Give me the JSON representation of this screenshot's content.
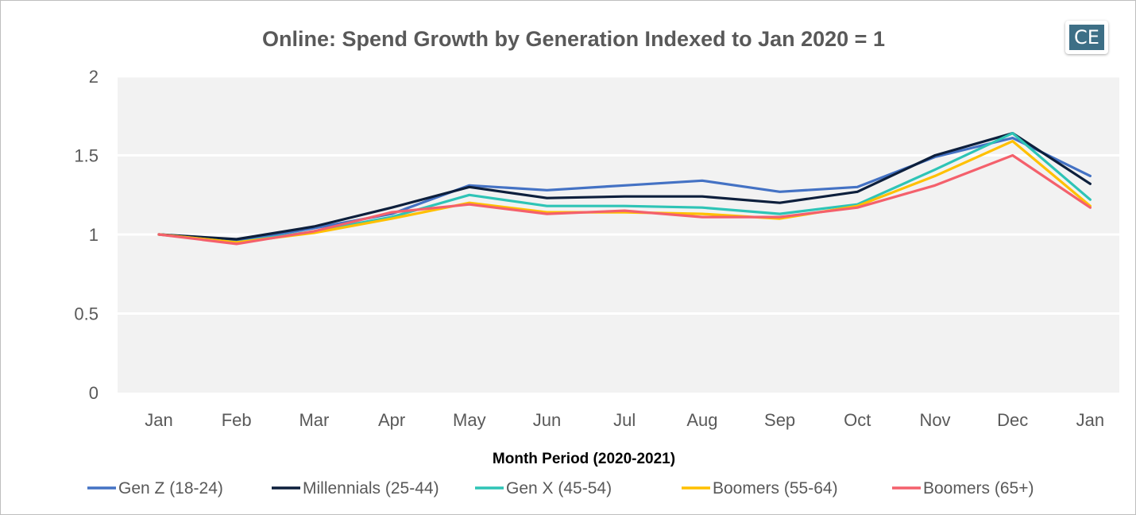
{
  "chart_data": {
    "type": "line",
    "title": "Online: Spend Growth by Generation Indexed to Jan 2020 = 1",
    "xlabel": "Month Period (2020-2021)",
    "ylabel": "",
    "ylim": [
      0,
      2
    ],
    "yticks": [
      "0",
      "0.5",
      "1",
      "1.5",
      "2"
    ],
    "grid": true,
    "legend": "bottom",
    "categories": [
      "Jan",
      "Feb",
      "Mar",
      "Apr",
      "May",
      "Jun",
      "Jul",
      "Aug",
      "Sep",
      "Oct",
      "Nov",
      "Dec",
      "Jan"
    ],
    "series": [
      {
        "name": "Gen Z (18-24)",
        "color": "#4472c4",
        "values": [
          1.0,
          0.96,
          1.04,
          1.13,
          1.31,
          1.28,
          1.31,
          1.34,
          1.27,
          1.3,
          1.49,
          1.61,
          1.37
        ]
      },
      {
        "name": "Millennials (25-44)",
        "color": "#0d1f3c",
        "values": [
          1.0,
          0.97,
          1.05,
          1.17,
          1.3,
          1.23,
          1.24,
          1.24,
          1.2,
          1.27,
          1.5,
          1.64,
          1.32
        ]
      },
      {
        "name": "Gen X (45-54)",
        "color": "#2ec4b6",
        "values": [
          1.0,
          0.95,
          1.02,
          1.11,
          1.25,
          1.18,
          1.18,
          1.17,
          1.13,
          1.19,
          1.41,
          1.64,
          1.22
        ]
      },
      {
        "name": "Boomers (55-64)",
        "color": "#ffc000",
        "values": [
          1.0,
          0.95,
          1.01,
          1.1,
          1.2,
          1.14,
          1.14,
          1.13,
          1.1,
          1.18,
          1.37,
          1.59,
          1.18
        ]
      },
      {
        "name": "Boomers (65+)",
        "color": "#f4606c",
        "values": [
          1.0,
          0.94,
          1.02,
          1.14,
          1.19,
          1.13,
          1.15,
          1.11,
          1.11,
          1.17,
          1.31,
          1.5,
          1.17
        ]
      }
    ]
  },
  "logo": {
    "text": "CE"
  }
}
